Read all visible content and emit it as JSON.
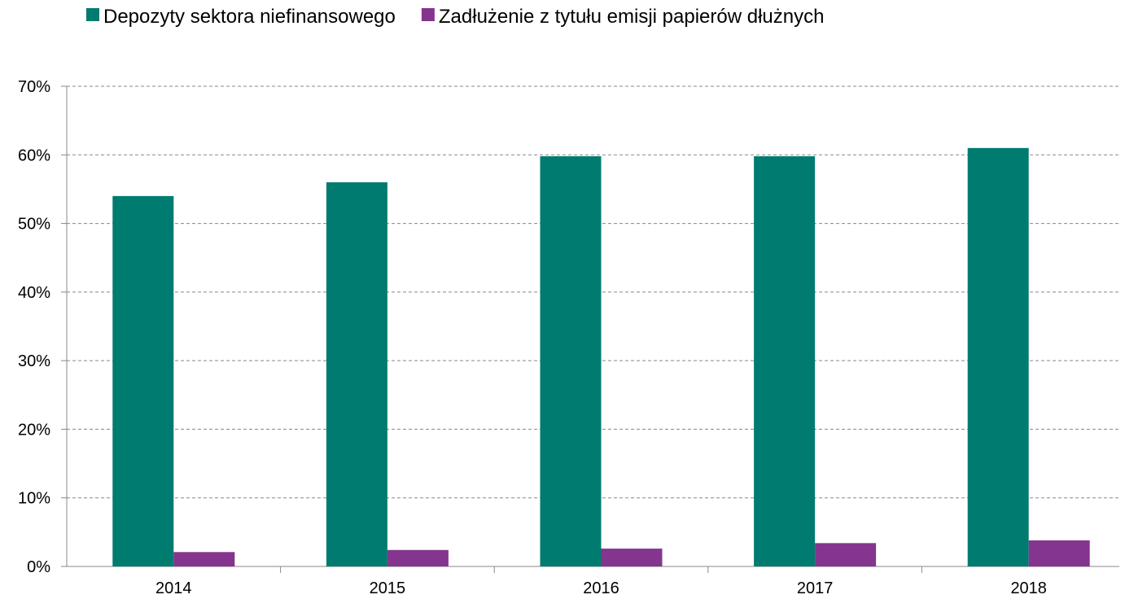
{
  "chart_data": {
    "type": "bar",
    "categories": [
      "2014",
      "2015",
      "2016",
      "2017",
      "2018"
    ],
    "series": [
      {
        "name": "Depozyty sektora niefinansowego",
        "color": "#007b70",
        "values": [
          54,
          56,
          59.8,
          59.8,
          61
        ]
      },
      {
        "name": "Zadłużenie z tytułu emisji papierów dłużnych",
        "color": "#84358e",
        "values": [
          2.1,
          2.4,
          2.6,
          3.4,
          3.8
        ]
      }
    ],
    "ylim": [
      0,
      70
    ],
    "yticks": [
      {
        "value": 0,
        "label": "0%"
      },
      {
        "value": 10,
        "label": "10%"
      },
      {
        "value": 20,
        "label": "20%"
      },
      {
        "value": 30,
        "label": "30%"
      },
      {
        "value": 40,
        "label": "40%"
      },
      {
        "value": 50,
        "label": "50%"
      },
      {
        "value": 60,
        "label": "60%"
      },
      {
        "value": 70,
        "label": "70%"
      }
    ],
    "grid": true,
    "legend": "top"
  }
}
